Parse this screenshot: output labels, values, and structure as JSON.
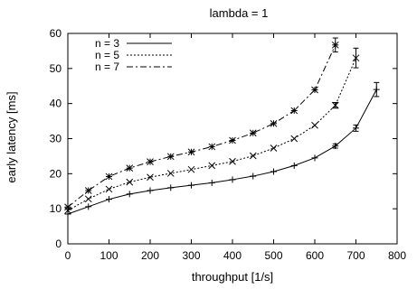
{
  "chart_data": {
    "type": "line",
    "title": "lambda = 1",
    "xlabel": "throughput [1/s]",
    "ylabel": "early latency [ms]",
    "xlim": [
      0,
      800
    ],
    "ylim": [
      0,
      60
    ],
    "xticks": [
      0,
      100,
      200,
      300,
      400,
      500,
      600,
      700,
      800
    ],
    "yticks": [
      0,
      10,
      20,
      30,
      40,
      50,
      60
    ],
    "grid": false,
    "legend_position": "top-left",
    "series": [
      {
        "name": "n = 3",
        "dash": "solid",
        "marker": "plus",
        "x": [
          0,
          50,
          100,
          150,
          200,
          250,
          300,
          350,
          400,
          450,
          500,
          550,
          600,
          650,
          700,
          750
        ],
        "y": [
          8.5,
          10.6,
          12.7,
          14.2,
          15.2,
          16.0,
          16.7,
          17.4,
          18.3,
          19.3,
          20.6,
          22.3,
          24.5,
          27.9,
          33.0,
          44.0
        ],
        "err": [
          0.3,
          0.2,
          0.2,
          0.2,
          0.2,
          0.2,
          0.2,
          0.2,
          0.2,
          0.2,
          0.3,
          0.3,
          0.4,
          0.6,
          0.9,
          2.0
        ]
      },
      {
        "name": "n = 5",
        "dash": "dotted",
        "marker": "x",
        "x": [
          0,
          50,
          100,
          150,
          200,
          250,
          300,
          350,
          400,
          450,
          500,
          550,
          600,
          650,
          700
        ],
        "y": [
          9.5,
          12.8,
          15.6,
          17.6,
          19.0,
          20.1,
          21.2,
          22.3,
          23.5,
          25.1,
          27.3,
          30.0,
          33.8,
          39.5,
          53.0
        ],
        "err": [
          0.3,
          0.2,
          0.2,
          0.2,
          0.2,
          0.2,
          0.2,
          0.2,
          0.2,
          0.3,
          0.3,
          0.3,
          0.4,
          0.8,
          2.8
        ]
      },
      {
        "name": "n = 7",
        "dash": "dashdot",
        "marker": "star",
        "x": [
          0,
          50,
          100,
          150,
          200,
          250,
          300,
          350,
          400,
          450,
          500,
          550,
          600,
          650
        ],
        "y": [
          10.5,
          15.2,
          19.2,
          21.6,
          23.4,
          24.9,
          26.2,
          27.7,
          29.5,
          31.6,
          34.3,
          38.0,
          43.9,
          56.7
        ],
        "err": [
          0.4,
          0.3,
          0.3,
          0.2,
          0.2,
          0.2,
          0.2,
          0.2,
          0.3,
          0.3,
          0.3,
          0.4,
          0.5,
          2.0
        ]
      }
    ]
  }
}
